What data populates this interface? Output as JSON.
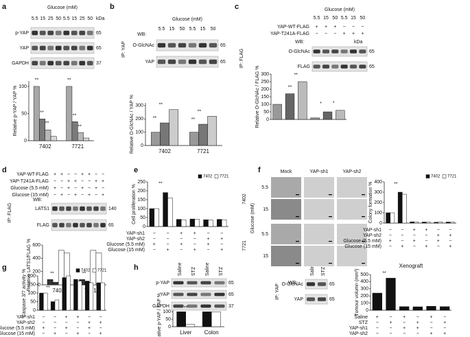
{
  "panels": [
    {
      "letter": "a",
      "header": "Glucose (mM)",
      "lanes": [
        "5.5",
        "15",
        "25",
        "50",
        "5.5",
        "15",
        "25",
        "50"
      ],
      "kda": "kDa",
      "rows": [
        {
          "name": "p-YAP",
          "size": "65"
        },
        {
          "name": "YAP",
          "size": "65"
        },
        {
          "name": "GAPDH",
          "size": "37"
        }
      ]
    },
    {
      "letter": "b",
      "header": "Glucose (mM)",
      "lanes": [
        "5.5",
        "15",
        "50",
        "5.5",
        "15",
        "50"
      ],
      "wb": "WB:",
      "ip": "IP: YAP",
      "rows": [
        {
          "name": "O-GlcNAc",
          "size": "65"
        },
        {
          "name": "YAP",
          "size": "65"
        }
      ]
    },
    {
      "letter": "c",
      "header": "Glucose (mM)",
      "lanes": [
        "5.5",
        "15",
        "50",
        "5.5",
        "15",
        "50"
      ],
      "conditions": [
        {
          "name": "YAP-WT-FLAG",
          "signs": [
            "+",
            "+",
            "+",
            "−",
            "−",
            "−"
          ]
        },
        {
          "name": "YAP-T241A-FLAG",
          "signs": [
            "−",
            "−",
            "−",
            "+",
            "+",
            "+"
          ]
        }
      ],
      "wb": "WB:",
      "kda": "kDa",
      "ip": "IP: FLAG",
      "rows": [
        {
          "name": "O-GlcNAc",
          "size": "65"
        },
        {
          "name": "FLAG",
          "size": "65"
        }
      ]
    },
    {
      "letter": "d",
      "conditions": [
        {
          "name": "YAP-WT-FLAG",
          "signs": [
            "+",
            "+",
            "−",
            "−",
            "+",
            "+",
            "−",
            "−"
          ]
        },
        {
          "name": "YAP-T241A-FLAG",
          "signs": [
            "−",
            "−",
            "+",
            "+",
            "−",
            "−",
            "+",
            "+"
          ]
        },
        {
          "name": "Glucose (5.5 mM)",
          "signs": [
            "+",
            "−",
            "+",
            "−",
            "+",
            "−",
            "+",
            "−"
          ]
        },
        {
          "name": "Glucose (15 mM)",
          "signs": [
            "−",
            "+",
            "−",
            "+",
            "−",
            "+",
            "−",
            "+"
          ]
        }
      ],
      "wb": "WB:",
      "ip": "IP: FLAG",
      "rows": [
        {
          "name": "LATS1",
          "size": "140"
        },
        {
          "name": "FLAG",
          "size": "65"
        }
      ]
    },
    {
      "letter": "e"
    },
    {
      "letter": "f",
      "columns": [
        "Mock",
        "YAP-sh1",
        "YAP-sh2"
      ],
      "cells": [
        "7402",
        "7721"
      ],
      "axis": "Glucose (mM)",
      "doses": [
        "5.5",
        "15",
        "5.5",
        "15"
      ]
    },
    {
      "letter": "g"
    },
    {
      "letter": "h",
      "lanes": [
        "Saline",
        "STZ",
        "Saline",
        "STZ"
      ],
      "rows": [
        {
          "name": "p-YAP",
          "size": "65"
        },
        {
          "name": "YAP",
          "size": "65"
        },
        {
          "name": "GAPDH",
          "size": "37"
        }
      ]
    },
    {
      "wb": "WB:",
      "ip": "IP: YAP",
      "lanes": [
        "Saline",
        "STZ"
      ],
      "rows": [
        {
          "name": "O-GlcNAc",
          "size": "65"
        },
        {
          "name": "YAP",
          "size": "65"
        }
      ]
    }
  ],
  "chart_data": [
    {
      "type": "bar",
      "ylabel": "Relative p-YAP / YAP %",
      "ylim": [
        0,
        110
      ],
      "yticks": [
        0,
        50,
        100
      ],
      "categories": [
        "7402",
        "7721"
      ],
      "series": [
        {
          "color": "#a8a8a8",
          "values": [
            100,
            100
          ]
        },
        {
          "color": "#7a7a7a",
          "values": [
            40,
            35
          ]
        },
        {
          "color": "#b8b8b8",
          "values": [
            20,
            15
          ]
        },
        {
          "color": "#d8d8d8",
          "values": [
            8,
            5
          ]
        }
      ],
      "annotations": [
        "**",
        "**",
        "**",
        "**",
        "**",
        "**"
      ]
    },
    {
      "type": "bar",
      "ylabel": "Relative O-GlcNAc / YAP %",
      "ylim": [
        0,
        320
      ],
      "yticks": [
        0,
        100,
        200,
        300
      ],
      "categories": [
        "7402",
        "7721"
      ],
      "series": [
        {
          "color": "#999999",
          "values": [
            100,
            100
          ]
        },
        {
          "color": "#777777",
          "values": [
            170,
            160
          ]
        },
        {
          "color": "#cccccc",
          "values": [
            270,
            220
          ]
        }
      ],
      "annotations": [
        "**",
        "**",
        "**",
        "**"
      ]
    },
    {
      "type": "bar",
      "ylabel": "Relative O-GlcNAc / FLAG %",
      "ylim": [
        0,
        300
      ],
      "yticks": [
        0,
        50,
        100,
        150,
        200,
        250,
        300
      ],
      "series": [
        {
          "colors": [
            "#999999",
            "#666666",
            "#bbbbbb",
            "#999999",
            "#666666",
            "#bbbbbb"
          ],
          "values": [
            100,
            170,
            250,
            10,
            50,
            60
          ]
        }
      ],
      "annotations": [
        "**",
        "**",
        "*",
        "*"
      ]
    },
    {
      "type": "bar",
      "ylabel": "Relative LATS1/FLAG %",
      "ylim": [
        0,
        600
      ],
      "yticks": [
        0,
        200,
        400,
        600
      ],
      "categories": [
        "7402",
        "7721"
      ],
      "series": [
        {
          "color": "#333333",
          "values": [
            80,
            80
          ]
        },
        {
          "color": "#333333",
          "values": [
            40,
            40
          ]
        },
        {
          "color": "#ffffff",
          "values": [
            520,
            520
          ]
        },
        {
          "color": "#ffffff",
          "values": [
            480,
            480
          ]
        }
      ],
      "annotations": [
        "**",
        "**"
      ]
    },
    {
      "type": "bar",
      "ylabel": "Cell proliferation %",
      "ylim": [
        0,
        250
      ],
      "yticks": [
        0,
        50,
        100,
        150,
        200,
        250
      ],
      "series": [
        {
          "name": "7402",
          "color": "#111111",
          "values": [
            100,
            190,
            40,
            42,
            38,
            40
          ]
        },
        {
          "name": "7721",
          "color": "#ffffff",
          "values": [
            100,
            160,
            38,
            40,
            36,
            38
          ]
        }
      ],
      "annotations": [
        "**"
      ],
      "conditions": [
        {
          "name": "YAP-sh1",
          "signs": [
            "−",
            "−",
            "+",
            "+",
            "−",
            "−"
          ]
        },
        {
          "name": "YAP-sh2",
          "signs": [
            "−",
            "−",
            "−",
            "−",
            "+",
            "+"
          ]
        },
        {
          "name": "Glucose (5.5 mM)",
          "signs": [
            "+",
            "−",
            "+",
            "−",
            "+",
            "−"
          ]
        },
        {
          "name": "Glucose (15 mM)",
          "signs": [
            "−",
            "+",
            "−",
            "+",
            "−",
            "+"
          ]
        }
      ]
    },
    {
      "type": "bar",
      "ylabel": "Colony formation %",
      "ylim": [
        0,
        400
      ],
      "yticks": [
        0,
        100,
        200,
        300,
        400
      ],
      "series": [
        {
          "name": "7402",
          "color": "#111111",
          "values": [
            100,
            300,
            12,
            10,
            8,
            10
          ]
        },
        {
          "name": "7721",
          "color": "#ffffff",
          "values": [
            100,
            280,
            10,
            8,
            10,
            8
          ]
        }
      ],
      "annotations": [
        "**"
      ],
      "conditions": [
        {
          "name": "YAP-sh1",
          "signs": [
            "−",
            "−",
            "+",
            "+",
            "−",
            "−"
          ]
        },
        {
          "name": "YAP-sh2",
          "signs": [
            "−",
            "−",
            "−",
            "−",
            "+",
            "+"
          ]
        },
        {
          "name": "Glucose (5.5 mM)",
          "signs": [
            "+",
            "−",
            "+",
            "−",
            "+",
            "−"
          ]
        },
        {
          "name": "Glucose (15 mM)",
          "signs": [
            "−",
            "+",
            "−",
            "+",
            "−",
            "+"
          ]
        }
      ]
    },
    {
      "type": "bar",
      "ylabel": "Caspase 3/7 activity %",
      "ylim": [
        0,
        200
      ],
      "yticks": [
        0,
        50,
        100,
        150,
        200
      ],
      "series": [
        {
          "name": "7402",
          "color": "#111111",
          "values": [
            100,
            50,
            190,
            180,
            170,
            160
          ]
        },
        {
          "name": "7721",
          "color": "#ffffff",
          "values": [
            100,
            60,
            200,
            170,
            160,
            160
          ]
        }
      ],
      "annotations": [
        "**"
      ],
      "conditions": [
        {
          "name": "YAP-sh1",
          "signs": [
            "−",
            "−",
            "+",
            "+",
            "−",
            "−"
          ]
        },
        {
          "name": "YAP-sh2",
          "signs": [
            "−",
            "−",
            "−",
            "−",
            "+",
            "+"
          ]
        },
        {
          "name": "Glucose (5.5 mM)",
          "signs": [
            "+",
            "−",
            "+",
            "−",
            "+",
            "−"
          ]
        },
        {
          "name": "Glucose (15 mM)",
          "signs": [
            "−",
            "+",
            "−",
            "+",
            "−",
            "+"
          ]
        }
      ]
    },
    {
      "type": "bar",
      "ylabel": "Relative p-YAP / YAP %",
      "ylim": [
        0,
        110
      ],
      "yticks": [
        0,
        50,
        100
      ],
      "categories": [
        "Liver",
        "Colon"
      ],
      "series": [
        {
          "color": "#111111",
          "values": [
            100,
            100
          ]
        },
        {
          "color": "#ffffff",
          "values": [
            15,
            100
          ]
        }
      ],
      "annotations": [
        "**"
      ]
    },
    {
      "type": "bar",
      "title": "Xenograft",
      "ylabel": "Tumour volumn (mm³)",
      "ylim": [
        0,
        500
      ],
      "yticks": [
        0,
        100,
        200,
        300,
        400,
        500
      ],
      "series": [
        {
          "color": "#111111",
          "values": [
            240,
            450,
            50,
            48,
            55,
            50
          ]
        }
      ],
      "annotations": [
        "**"
      ],
      "conditions": [
        {
          "name": "Saline",
          "signs": [
            "+",
            "−",
            "+",
            "−",
            "+",
            "−"
          ]
        },
        {
          "name": "STZ",
          "signs": [
            "−",
            "+",
            "−",
            "+",
            "−",
            "+"
          ]
        },
        {
          "name": "YAP-sh1",
          "signs": [
            "−",
            "−",
            "+",
            "+",
            "−",
            "−"
          ]
        },
        {
          "name": "YAP-sh2",
          "signs": [
            "−",
            "−",
            "−",
            "−",
            "+",
            "+"
          ]
        }
      ]
    }
  ]
}
